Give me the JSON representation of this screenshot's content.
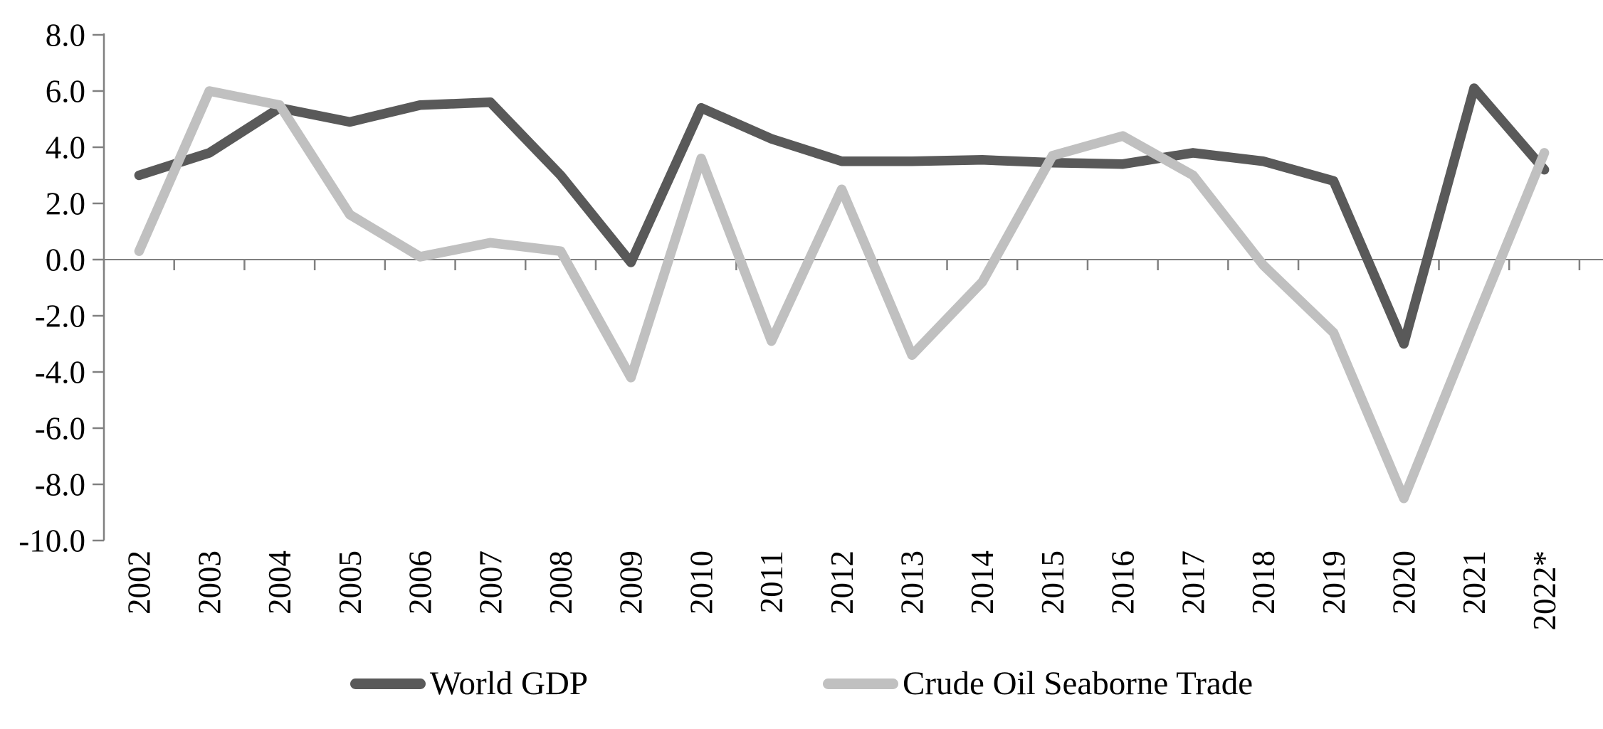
{
  "chart_data": {
    "type": "line",
    "title": "",
    "xlabel": "",
    "ylabel": "",
    "categories": [
      "2002",
      "2003",
      "2004",
      "2005",
      "2006",
      "2007",
      "2008",
      "2009",
      "2010",
      "2011",
      "2012",
      "2013",
      "2014",
      "2015",
      "2016",
      "2017",
      "2018",
      "2019",
      "2020",
      "2021",
      "2022*"
    ],
    "series": [
      {
        "name": "World GDP",
        "color": "#595959",
        "values": [
          3.0,
          3.8,
          5.4,
          4.9,
          5.5,
          5.6,
          3.0,
          -0.1,
          5.4,
          4.3,
          3.5,
          3.5,
          3.55,
          3.45,
          3.4,
          3.8,
          3.5,
          2.8,
          -3.0,
          6.1,
          3.2
        ]
      },
      {
        "name": "Crude Oil Seaborne Trade",
        "color": "#c0c0c0",
        "values": [
          0.3,
          6.0,
          5.5,
          1.6,
          0.1,
          0.6,
          0.3,
          -4.2,
          3.6,
          -2.9,
          2.5,
          -3.4,
          -0.8,
          3.7,
          4.4,
          3.0,
          -0.2,
          -2.6,
          -8.5,
          -2.3,
          3.8
        ]
      }
    ],
    "ylim": [
      -10.0,
      8.0
    ],
    "ytick_step": 2.0,
    "ytick_labels": [
      "8.0",
      "6.0",
      "4.0",
      "2.0",
      "0.0",
      "-2.0",
      "-4.0",
      "-6.0",
      "-8.0",
      "-10.0"
    ],
    "grid": "none",
    "zero_baseline": true,
    "axis_color": "#808080",
    "text_color": "#000000",
    "legend_position": "bottom-center",
    "x_labels_rotated_degrees": 90
  },
  "legend": {
    "items": [
      {
        "label": "World GDP"
      },
      {
        "label": "Crude Oil Seaborne Trade"
      }
    ]
  }
}
